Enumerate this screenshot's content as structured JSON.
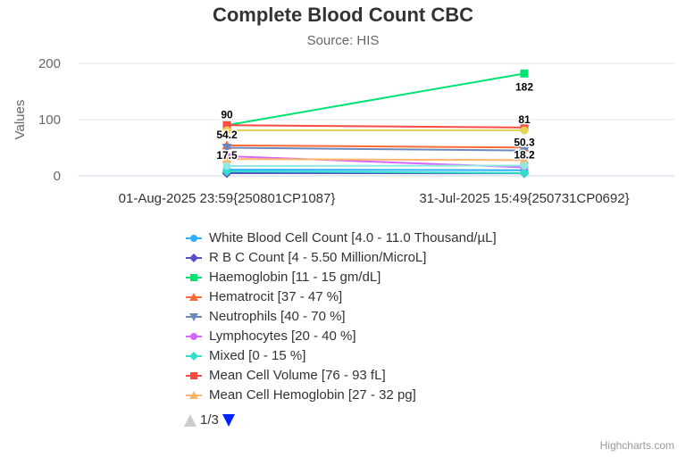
{
  "title": "Complete Blood Count CBC",
  "subtitle": "Source: HIS",
  "credits": "Highcharts.com",
  "legend_nav": {
    "page_text": "1/3",
    "up_icon": "triangle-up-icon",
    "down_icon": "triangle-down-icon"
  },
  "chart_data": {
    "type": "line",
    "title": "Complete Blood Count CBC",
    "subtitle": "Source: HIS",
    "xlabel": "",
    "ylabel": "Values",
    "ylim": [
      0,
      200
    ],
    "yticks": [
      "0",
      "100",
      "200"
    ],
    "categories": [
      "01-Aug-2025 23:59{250801CP1087}",
      "31-Jul-2025 15:49{250731CP0692}"
    ],
    "grid": true,
    "legend_position": "bottom",
    "series": [
      {
        "name": "White Blood Cell Count [4.0 - 11.0 Thousand/µL]",
        "values": [
          11,
          10
        ],
        "color": "#2caffe",
        "marker": "circle"
      },
      {
        "name": "R B C Count [4 - 5.50 Million/MicroL]",
        "values": [
          4.8,
          4.5
        ],
        "color": "#544fc5",
        "marker": "diamond"
      },
      {
        "name": "Haemoglobin [11 - 15 gm/dL]",
        "values": [
          90,
          182
        ],
        "color": "#00e272",
        "marker": "square"
      },
      {
        "name": "Hematrocit [37 - 47 %]",
        "values": [
          54.2,
          50.3
        ],
        "color": "#fe6a35",
        "marker": "triangle"
      },
      {
        "name": "Neutrophils [40 - 70 %]",
        "values": [
          50,
          45
        ],
        "color": "#6b8abc",
        "marker": "triangle-down"
      },
      {
        "name": "Lymphocytes [20 - 40 %]",
        "values": [
          35,
          15
        ],
        "color": "#d568fb",
        "marker": "circle"
      },
      {
        "name": "Mixed [0 - 15 %]",
        "values": [
          8,
          5
        ],
        "color": "#2ee0ca",
        "marker": "diamond"
      },
      {
        "name": "Mean Cell Volume [76 - 93 fL]",
        "values": [
          90,
          86
        ],
        "color": "#fa4b42",
        "marker": "square"
      },
      {
        "name": "Mean Cell Hemoglobin [27 - 32 pg]",
        "values": [
          30,
          28
        ],
        "color": "#feb56a",
        "marker": "triangle"
      },
      {
        "name": "",
        "values": [
          17.5,
          18.2
        ],
        "color": "#91e8e1",
        "marker": "circle"
      },
      {
        "name": "",
        "values": [
          81,
          81
        ],
        "color": "#e4d354",
        "marker": "circle"
      }
    ],
    "data_labels": [
      {
        "series": 2,
        "index": 0,
        "text": "90"
      },
      {
        "series": 2,
        "index": 1,
        "text": "182"
      },
      {
        "series": 3,
        "index": 0,
        "text": "54.2"
      },
      {
        "series": 3,
        "index": 1,
        "text": "50.3"
      },
      {
        "series": 9,
        "index": 0,
        "text": "17.5"
      },
      {
        "series": 9,
        "index": 1,
        "text": "18.2"
      },
      {
        "series": 10,
        "index": 1,
        "text": "81"
      }
    ],
    "legend_visible_count": 9
  }
}
